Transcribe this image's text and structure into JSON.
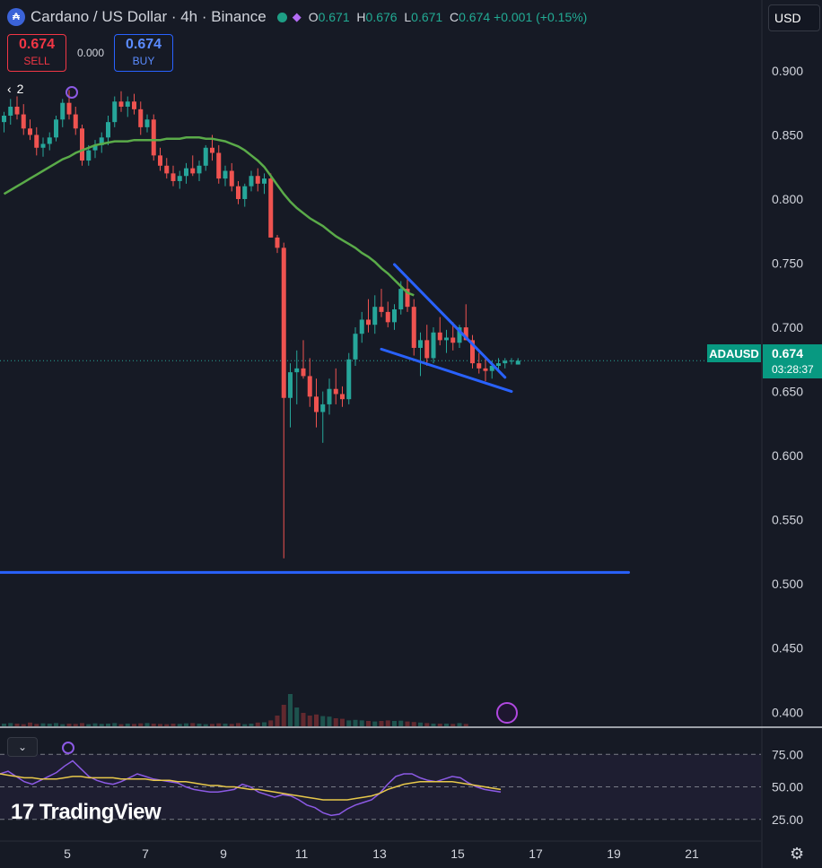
{
  "header": {
    "symbol_title": "Cardano / US Dollar · 4h · Binance",
    "ohlc": {
      "o_label": "O",
      "o": "0.671",
      "h_label": "H",
      "h": "0.676",
      "l_label": "L",
      "l": "0.671",
      "c_label": "C",
      "c": "0.674",
      "change": "+0.001 (+0.15%)"
    },
    "coin_icon": "cardano-logo-icon",
    "status_icon": "share-icon"
  },
  "currency": "USD",
  "trade": {
    "sell_price": "0.674",
    "sell_label": "SELL",
    "spread": "0.000",
    "buy_price": "0.674",
    "buy_label": "BUY"
  },
  "legend_toggle": {
    "count": "2"
  },
  "price_tag": {
    "symbol": "ADAUSD",
    "price": "0.674",
    "countdown": "03:28:37"
  },
  "branding": "TradingView",
  "colors": {
    "up": "#26a69a",
    "down": "#ef5350",
    "ma": "#5aab49",
    "trend": "#2962ff",
    "rsi": "#8c5ae5",
    "rsi_ma": "#e7c84a",
    "bg": "#161a25"
  },
  "chart_data": {
    "type": "candlestick",
    "timeframe": "4h",
    "x_axis": {
      "ticks": [
        "5",
        "7",
        "9",
        "11",
        "13",
        "15",
        "17",
        "19",
        "21"
      ],
      "tick_index": [
        12,
        24,
        36,
        48,
        60,
        72,
        84,
        96,
        108
      ],
      "candle_count": 80
    },
    "y_axis": {
      "ticks": [
        "0.900",
        "0.850",
        "0.800",
        "0.750",
        "0.700",
        "0.650",
        "0.600",
        "0.550",
        "0.500",
        "0.450",
        "0.400"
      ],
      "range": [
        0.389,
        0.93
      ]
    },
    "candles": [
      [
        0.86,
        0.868,
        0.852,
        0.865
      ],
      [
        0.865,
        0.878,
        0.858,
        0.872
      ],
      [
        0.872,
        0.88,
        0.862,
        0.866
      ],
      [
        0.866,
        0.874,
        0.85,
        0.855
      ],
      [
        0.855,
        0.862,
        0.846,
        0.85
      ],
      [
        0.85,
        0.856,
        0.834,
        0.84
      ],
      [
        0.84,
        0.848,
        0.833,
        0.843
      ],
      [
        0.843,
        0.852,
        0.838,
        0.848
      ],
      [
        0.848,
        0.865,
        0.845,
        0.862
      ],
      [
        0.862,
        0.878,
        0.856,
        0.875
      ],
      [
        0.875,
        0.885,
        0.862,
        0.866
      ],
      [
        0.866,
        0.872,
        0.85,
        0.855
      ],
      [
        0.855,
        0.858,
        0.826,
        0.83
      ],
      [
        0.83,
        0.842,
        0.826,
        0.838
      ],
      [
        0.838,
        0.846,
        0.832,
        0.842
      ],
      [
        0.842,
        0.852,
        0.836,
        0.848
      ],
      [
        0.848,
        0.865,
        0.842,
        0.86
      ],
      [
        0.86,
        0.88,
        0.856,
        0.876
      ],
      [
        0.876,
        0.884,
        0.868,
        0.872
      ],
      [
        0.872,
        0.88,
        0.864,
        0.876
      ],
      [
        0.876,
        0.882,
        0.866,
        0.87
      ],
      [
        0.87,
        0.876,
        0.85,
        0.856
      ],
      [
        0.856,
        0.866,
        0.852,
        0.862
      ],
      [
        0.862,
        0.866,
        0.83,
        0.834
      ],
      [
        0.834,
        0.84,
        0.822,
        0.826
      ],
      [
        0.826,
        0.832,
        0.816,
        0.82
      ],
      [
        0.82,
        0.826,
        0.81,
        0.814
      ],
      [
        0.814,
        0.822,
        0.808,
        0.818
      ],
      [
        0.818,
        0.828,
        0.812,
        0.824
      ],
      [
        0.824,
        0.834,
        0.818,
        0.82
      ],
      [
        0.82,
        0.83,
        0.814,
        0.826
      ],
      [
        0.826,
        0.842,
        0.822,
        0.84
      ],
      [
        0.84,
        0.85,
        0.83,
        0.836
      ],
      [
        0.836,
        0.842,
        0.812,
        0.816
      ],
      [
        0.816,
        0.826,
        0.81,
        0.822
      ],
      [
        0.822,
        0.828,
        0.806,
        0.81
      ],
      [
        0.81,
        0.814,
        0.796,
        0.8
      ],
      [
        0.8,
        0.812,
        0.794,
        0.81
      ],
      [
        0.81,
        0.822,
        0.806,
        0.818
      ],
      [
        0.818,
        0.824,
        0.806,
        0.812
      ],
      [
        0.812,
        0.82,
        0.804,
        0.816
      ],
      [
        0.816,
        0.82,
        0.77,
        0.77
      ],
      [
        0.77,
        0.772,
        0.758,
        0.762
      ],
      [
        0.762,
        0.766,
        0.52,
        0.645
      ],
      [
        0.645,
        0.672,
        0.622,
        0.665
      ],
      [
        0.665,
        0.682,
        0.64,
        0.668
      ],
      [
        0.668,
        0.69,
        0.66,
        0.662
      ],
      [
        0.662,
        0.676,
        0.638,
        0.646
      ],
      [
        0.646,
        0.66,
        0.622,
        0.634
      ],
      [
        0.634,
        0.65,
        0.61,
        0.64
      ],
      [
        0.64,
        0.66,
        0.632,
        0.652
      ],
      [
        0.652,
        0.668,
        0.64,
        0.648
      ],
      [
        0.648,
        0.654,
        0.638,
        0.644
      ],
      [
        0.644,
        0.68,
        0.64,
        0.675
      ],
      [
        0.675,
        0.7,
        0.67,
        0.695
      ],
      [
        0.695,
        0.712,
        0.688,
        0.706
      ],
      [
        0.706,
        0.722,
        0.696,
        0.702
      ],
      [
        0.702,
        0.725,
        0.695,
        0.716
      ],
      [
        0.716,
        0.73,
        0.708,
        0.712
      ],
      [
        0.712,
        0.72,
        0.7,
        0.704
      ],
      [
        0.704,
        0.718,
        0.698,
        0.714
      ],
      [
        0.714,
        0.736,
        0.71,
        0.73
      ],
      [
        0.73,
        0.738,
        0.712,
        0.716
      ],
      [
        0.716,
        0.722,
        0.678,
        0.684
      ],
      [
        0.684,
        0.696,
        0.662,
        0.69
      ],
      [
        0.69,
        0.702,
        0.67,
        0.676
      ],
      [
        0.676,
        0.7,
        0.672,
        0.696
      ],
      [
        0.696,
        0.708,
        0.686,
        0.69
      ],
      [
        0.69,
        0.698,
        0.68,
        0.692
      ],
      [
        0.692,
        0.704,
        0.682,
        0.688
      ],
      [
        0.688,
        0.702,
        0.684,
        0.7
      ],
      [
        0.7,
        0.718,
        0.69,
        0.69
      ],
      [
        0.69,
        0.694,
        0.668,
        0.672
      ],
      [
        0.672,
        0.68,
        0.664,
        0.668
      ],
      [
        0.668,
        0.676,
        0.658,
        0.666
      ],
      [
        0.666,
        0.674,
        0.66,
        0.67
      ],
      [
        0.67,
        0.676,
        0.666,
        0.672
      ],
      [
        0.672,
        0.676,
        0.668,
        0.674
      ],
      [
        0.674,
        0.676,
        0.671,
        0.674
      ],
      [
        0.671,
        0.676,
        0.671,
        0.674
      ]
    ],
    "moving_average": {
      "start_index": 0,
      "values": [
        0.804,
        0.807,
        0.81,
        0.813,
        0.816,
        0.819,
        0.822,
        0.825,
        0.828,
        0.831,
        0.833,
        0.836,
        0.838,
        0.84,
        0.842,
        0.843,
        0.844,
        0.845,
        0.845,
        0.845,
        0.846,
        0.846,
        0.846,
        0.846,
        0.846,
        0.847,
        0.847,
        0.847,
        0.848,
        0.848,
        0.848,
        0.847,
        0.847,
        0.846,
        0.845,
        0.843,
        0.841,
        0.838,
        0.834,
        0.83,
        0.825,
        0.818,
        0.811,
        0.804,
        0.798,
        0.793,
        0.789,
        0.785,
        0.782,
        0.779,
        0.775,
        0.771,
        0.768,
        0.765,
        0.762,
        0.758,
        0.755,
        0.751,
        0.746,
        0.742,
        0.737,
        0.732,
        0.727,
        0.725
      ]
    },
    "trend_lines": [
      {
        "from": [
          60,
          0.749
        ],
        "to": [
          77,
          0.661
        ]
      },
      {
        "from": [
          58,
          0.683
        ],
        "to": [
          78,
          0.65
        ]
      },
      {
        "from": [
          -3,
          0.509
        ],
        "to": [
          96,
          0.509
        ]
      }
    ],
    "rsi": {
      "levels": [
        "75.00",
        "50.00",
        "25.00"
      ],
      "values": [
        60,
        62,
        58,
        54,
        52,
        55,
        58,
        61,
        66,
        70,
        64,
        58,
        55,
        53,
        52,
        54,
        57,
        60,
        58,
        56,
        55,
        54,
        53,
        50,
        48,
        47,
        46,
        46,
        47,
        48,
        52,
        50,
        46,
        44,
        42,
        44,
        43,
        40,
        36,
        34,
        30,
        28,
        29,
        33,
        36,
        38,
        40,
        45,
        52,
        58,
        60,
        60,
        57,
        55,
        54,
        56,
        58,
        57,
        53,
        50,
        48,
        47,
        46
      ],
      "ma": [
        60,
        59,
        58,
        57,
        57,
        56,
        56,
        56,
        57,
        58,
        58,
        57,
        57,
        57,
        57,
        56,
        56,
        56,
        56,
        55,
        55,
        55,
        54,
        54,
        53,
        52,
        51,
        51,
        50,
        50,
        49,
        48,
        48,
        47,
        46,
        45,
        44,
        43,
        42,
        41,
        40,
        40,
        40,
        40,
        41,
        42,
        43,
        45,
        48,
        50,
        52,
        53,
        54,
        54,
        54,
        54,
        54,
        53,
        52,
        51,
        50,
        49,
        48
      ]
    },
    "volume": [
      10,
      12,
      10,
      8,
      14,
      9,
      11,
      10,
      12,
      8,
      10,
      9,
      12,
      8,
      11,
      9,
      10,
      12,
      8,
      10,
      9,
      11,
      12,
      10,
      9,
      8,
      10,
      9,
      11,
      12,
      10,
      8,
      9,
      11,
      10,
      9,
      12,
      8,
      10,
      14,
      15,
      22,
      40,
      80,
      120,
      70,
      50,
      40,
      44,
      38,
      36,
      30,
      28,
      22,
      24,
      22,
      20,
      18,
      20,
      22,
      20,
      21,
      18,
      16,
      14,
      12,
      10,
      10,
      10,
      9,
      12,
      9
    ]
  }
}
